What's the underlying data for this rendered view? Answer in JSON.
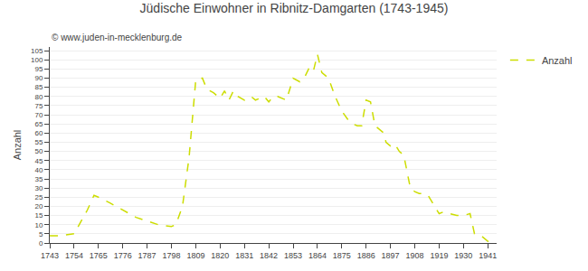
{
  "chart_data": {
    "type": "line",
    "title": "Jüdische Einwohner in Ribnitz-Damgarten (1743-1945)",
    "subtitle": "© www.juden-in-mecklenburg.de",
    "ylabel": "Anzahl",
    "x": [
      1743,
      1748,
      1754,
      1760,
      1763,
      1765,
      1770,
      1776,
      1782,
      1787,
      1792,
      1798,
      1800,
      1803,
      1806,
      1809,
      1812,
      1814,
      1817,
      1820,
      1822,
      1824,
      1826,
      1828,
      1831,
      1834,
      1836,
      1838,
      1840,
      1842,
      1844,
      1846,
      1848,
      1850,
      1853,
      1856,
      1858,
      1860,
      1862,
      1864,
      1866,
      1869,
      1872,
      1875,
      1878,
      1880,
      1882,
      1884,
      1886,
      1888,
      1890,
      1892,
      1894,
      1895,
      1897,
      1899,
      1901,
      1903,
      1906,
      1908,
      1910,
      1912,
      1914,
      1919,
      1921,
      1924,
      1927,
      1930,
      1933,
      1935,
      1938,
      1941,
      1945
    ],
    "series": [
      {
        "name": "Anzahl",
        "color": "#ccdd00",
        "line_style": "dashed",
        "values": [
          4,
          4,
          5,
          18,
          26,
          25,
          22,
          18,
          14,
          12,
          10,
          9,
          10,
          20,
          47,
          89,
          90,
          84,
          82,
          79,
          83,
          78,
          83,
          80,
          78,
          80,
          78,
          79,
          80,
          77,
          80,
          80,
          79,
          78,
          90,
          88,
          90,
          95,
          93,
          103,
          93,
          90,
          80,
          72,
          67,
          65,
          64,
          64,
          78,
          77,
          64,
          62,
          60,
          55,
          53,
          54,
          50,
          48,
          30,
          28,
          27,
          27,
          26,
          16,
          17,
          16,
          15,
          15,
          16,
          5,
          4,
          1,
          0
        ]
      }
    ],
    "xlim": [
      1743,
      1945
    ],
    "xticks": [
      1743,
      1754,
      1765,
      1776,
      1787,
      1798,
      1809,
      1820,
      1831,
      1842,
      1853,
      1864,
      1875,
      1886,
      1897,
      1908,
      1919,
      1930,
      1941
    ],
    "ylim": [
      0,
      107
    ],
    "yticks": [
      0,
      5,
      10,
      15,
      20,
      25,
      30,
      35,
      40,
      45,
      50,
      55,
      60,
      65,
      70,
      75,
      80,
      85,
      90,
      95,
      100,
      105
    ],
    "grid": "y",
    "legend": "upper right"
  }
}
